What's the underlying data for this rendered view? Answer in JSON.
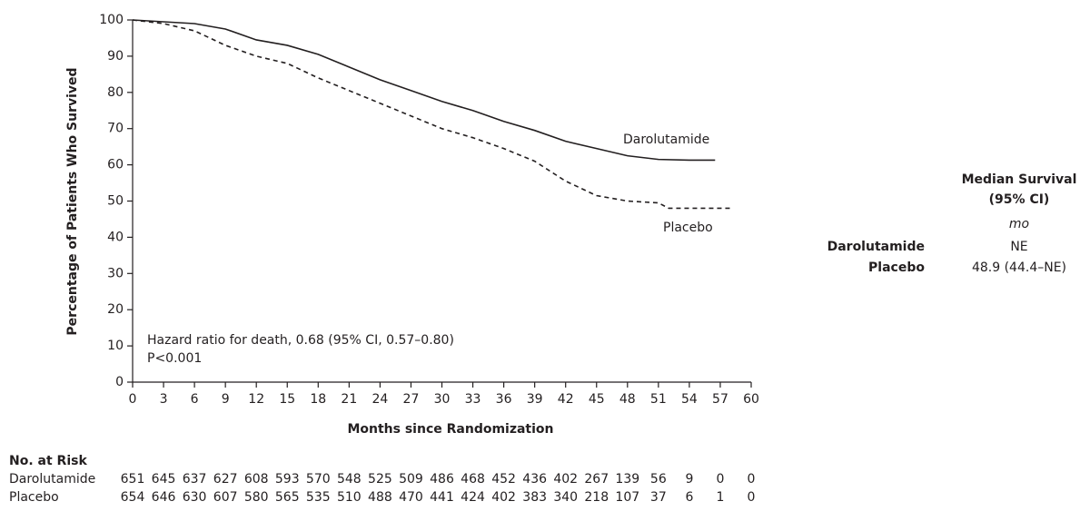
{
  "chart_data": {
    "type": "line",
    "x_label": "Months since Randomization",
    "y_label": "Percentage of Patients Who Survived",
    "annotation": [
      "Hazard ratio for death, 0.68 (95% CI, 0.57–0.80)",
      "P<0.001"
    ],
    "xlim": [
      0,
      60
    ],
    "ylim": [
      0,
      100
    ],
    "xticks": [
      0,
      3,
      6,
      9,
      12,
      15,
      18,
      21,
      24,
      27,
      30,
      33,
      36,
      39,
      42,
      45,
      48,
      51,
      54,
      57,
      60
    ],
    "yticks": [
      0,
      10,
      20,
      30,
      40,
      50,
      60,
      70,
      80,
      90,
      100
    ],
    "series": [
      {
        "name": "Darolutamide",
        "color": "#231f20",
        "dash": false,
        "x": [
          0,
          3,
          6,
          9,
          12,
          15,
          18,
          21,
          24,
          27,
          30,
          33,
          36,
          39,
          42,
          45,
          48,
          51,
          54,
          56.5
        ],
        "values": [
          100,
          99.5,
          99,
          97.5,
          94.5,
          93,
          90.5,
          87,
          83.5,
          80.5,
          77.5,
          75,
          72,
          69.5,
          66.5,
          64.5,
          62.5,
          61.5,
          61.3,
          61.3
        ]
      },
      {
        "name": "Placebo",
        "color": "#231f20",
        "dash": true,
        "x": [
          0,
          3,
          6,
          9,
          12,
          15,
          18,
          21,
          24,
          27,
          30,
          33,
          36,
          39,
          42,
          45,
          48,
          51,
          52,
          55,
          58
        ],
        "values": [
          100,
          99,
          97,
          93,
          90,
          88,
          84,
          80.5,
          77,
          73.5,
          70,
          67.5,
          64.5,
          61,
          55.5,
          51.5,
          50,
          49.5,
          48,
          48,
          48
        ]
      }
    ]
  },
  "median_table": {
    "header": [
      "Median Survival",
      "(95% CI)"
    ],
    "unit": "mo",
    "rows": [
      [
        "Darolutamide",
        "NE"
      ],
      [
        "Placebo",
        "48.9 (44.4–NE)"
      ]
    ]
  },
  "risk_table": {
    "title": "No. at Risk",
    "rows": [
      {
        "name": "Darolutamide",
        "counts": [
          651,
          645,
          637,
          627,
          608,
          593,
          570,
          548,
          525,
          509,
          486,
          468,
          452,
          436,
          402,
          267,
          139,
          56,
          9,
          0,
          0
        ]
      },
      {
        "name": "Placebo",
        "counts": [
          654,
          646,
          630,
          607,
          580,
          565,
          535,
          510,
          488,
          470,
          441,
          424,
          402,
          383,
          340,
          218,
          107,
          37,
          6,
          1,
          0
        ]
      }
    ]
  }
}
